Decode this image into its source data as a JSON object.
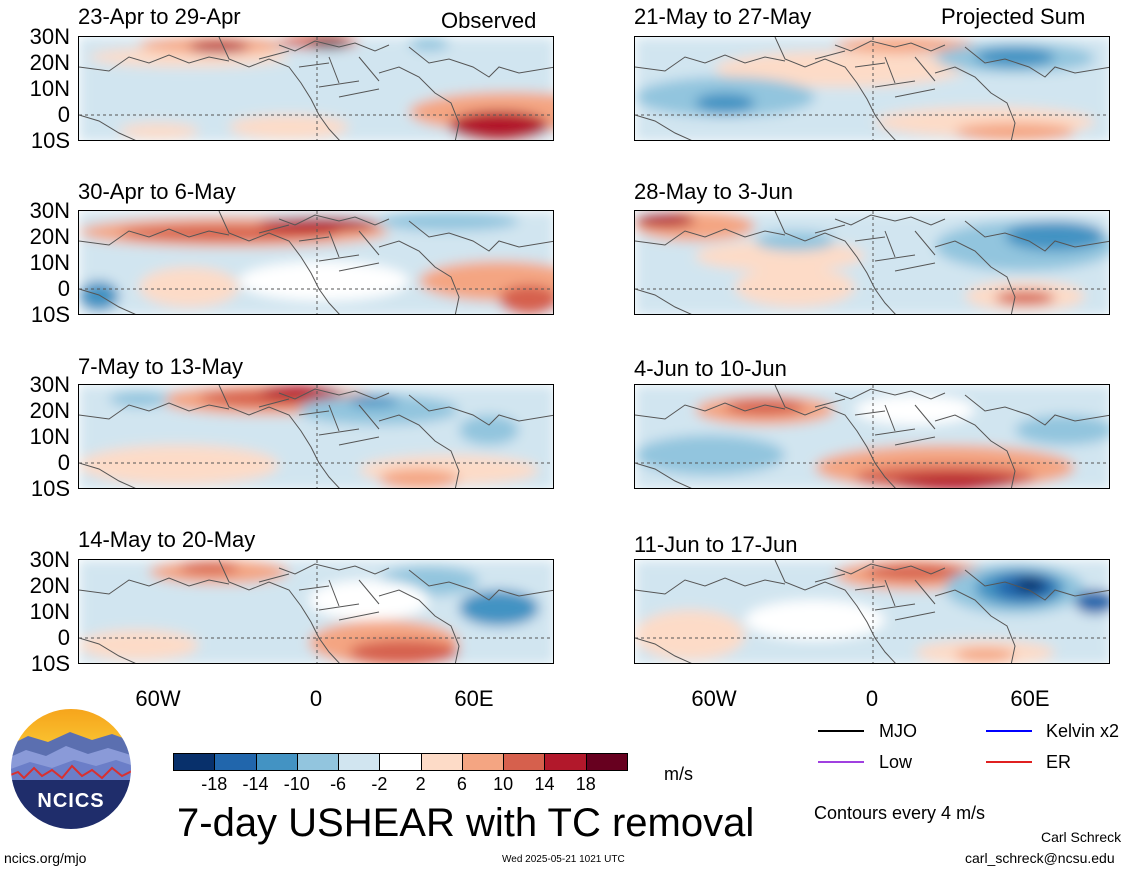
{
  "corner_tags": {
    "left": "Observed",
    "right": "Projected Sum"
  },
  "latitude_labels": [
    "30N",
    "20N",
    "10N",
    "0",
    "10S"
  ],
  "longitude_labels": [
    "60W",
    "0",
    "60E"
  ],
  "panels": [
    {
      "title": "23-Apr to 29-Apr",
      "group": "observed"
    },
    {
      "title": "30-Apr to 6-May",
      "group": "observed"
    },
    {
      "title": "7-May to 13-May",
      "group": "observed"
    },
    {
      "title": "14-May to 20-May",
      "group": "observed"
    },
    {
      "title": "21-May to 27-May",
      "group": "projected"
    },
    {
      "title": "28-May to 3-Jun",
      "group": "projected"
    },
    {
      "title": "4-Jun to 10-Jun",
      "group": "projected"
    },
    {
      "title": "11-Jun to 17-Jun",
      "group": "projected"
    }
  ],
  "colorbar": {
    "labels": [
      "-18",
      "-14",
      "-10",
      "-6",
      "-2",
      "2",
      "6",
      "10",
      "14",
      "18"
    ],
    "colors": [
      "#08306b",
      "#2166ac",
      "#4393c3",
      "#92c5de",
      "#d1e5f0",
      "#ffffff",
      "#fddbc7",
      "#f4a582",
      "#d6604d",
      "#b2182b",
      "#67001f"
    ],
    "units": "m/s"
  },
  "legend": {
    "items": [
      {
        "label": "MJO",
        "color": "#000000"
      },
      {
        "label": "Kelvin x2",
        "color": "#0000ff"
      },
      {
        "label": "Low",
        "color": "#a040e0"
      },
      {
        "label": "ER",
        "color": "#e02020"
      }
    ],
    "contour_note": "Contours every 4 m/s"
  },
  "main_title": "7-day USHEAR with TC removal",
  "logo_text": "NCICS",
  "footer": {
    "left": "ncics.org/mjo",
    "center": "Wed 2025-05-21 1021 UTC",
    "author": "Carl Schreck",
    "email": "carl_schreck@ncsu.edu"
  }
}
